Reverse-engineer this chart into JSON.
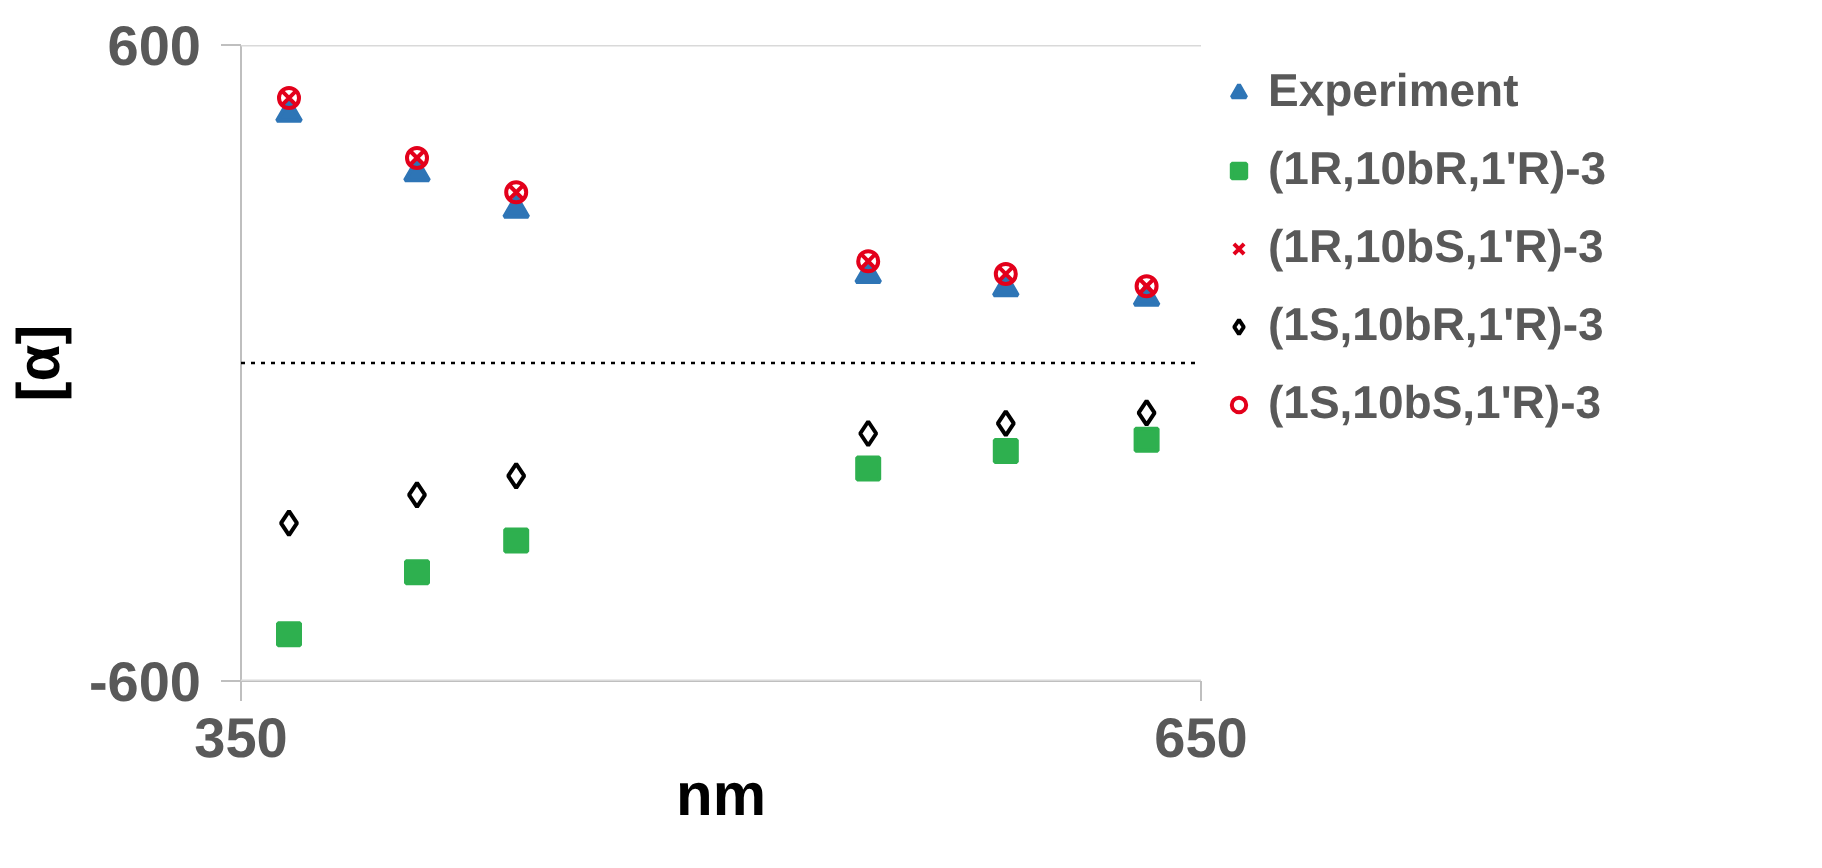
{
  "chart_data": {
    "type": "scatter",
    "xlabel": "nm",
    "ylabel": "[α]",
    "x": [
      365,
      405,
      436,
      546,
      589,
      633
    ],
    "xlim": [
      350,
      650
    ],
    "xticks": [
      350,
      650
    ],
    "ylim": [
      -600,
      600
    ],
    "yticks": [
      -600,
      600
    ],
    "grid": "y",
    "legend": "right",
    "ref_lines": [
      {
        "axis": "y",
        "value": 0,
        "color": "#000000",
        "line_style": "dotted"
      }
    ],
    "series": [
      {
        "name": "Experiment",
        "color": "#2e75b6",
        "marker": "triangle",
        "values": [
          470,
          358,
          289,
          166,
          141,
          123
        ]
      },
      {
        "name": "(1R,10bR,1'R)-3",
        "color": "#2eb04f",
        "marker": "square",
        "values": [
          -512,
          -395,
          -335,
          -199,
          -166,
          -145
        ]
      },
      {
        "name": "(1R,10bS,1'R)-3",
        "color": "#e3001b",
        "marker": "cross",
        "values": [
          500,
          387,
          322,
          192,
          168,
          145
        ]
      },
      {
        "name": "(1S,10bR,1'R)-3",
        "color": "#000000",
        "marker": "diamond",
        "values": [
          -302,
          -249,
          -213,
          -133,
          -114,
          -94
        ]
      },
      {
        "name": "(1S,10bS,1'R)-3",
        "color": "#e3001b",
        "marker": "circle",
        "values": [
          500,
          387,
          322,
          192,
          168,
          145
        ]
      }
    ]
  }
}
